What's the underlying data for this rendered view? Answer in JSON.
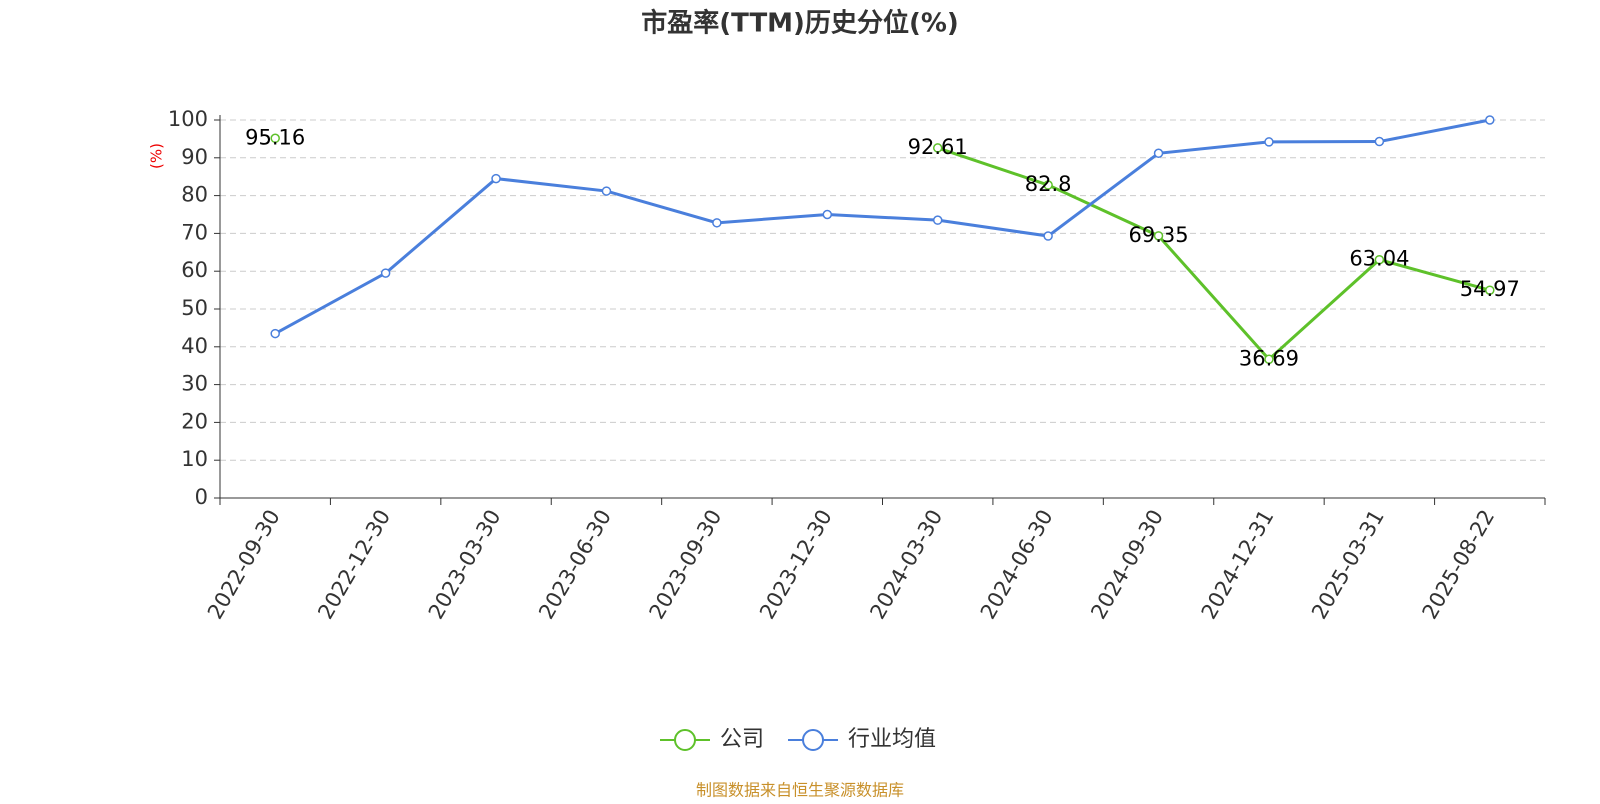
{
  "chart_data": {
    "type": "line",
    "title": "市盈率(TTM)历史分位(%)",
    "y_label": "(%)",
    "categories": [
      "2022-09-30",
      "2022-12-30",
      "2023-03-30",
      "2023-06-30",
      "2023-09-30",
      "2023-12-30",
      "2024-03-30",
      "2024-06-30",
      "2024-09-30",
      "2024-12-31",
      "2025-03-31",
      "2025-08-22"
    ],
    "series": [
      {
        "name": "公司",
        "color": "#5ec12a",
        "values": [
          95.16,
          null,
          null,
          null,
          null,
          null,
          92.61,
          82.8,
          69.35,
          36.69,
          63.04,
          54.97
        ]
      },
      {
        "name": "行业均值",
        "color": "#4a7fdc",
        "values": [
          43.5,
          59.5,
          84.5,
          81.2,
          72.8,
          75,
          73.5,
          69.3,
          91.2,
          94.2,
          94.3,
          100
        ]
      }
    ],
    "ylim": [
      0,
      100
    ],
    "yticks": [
      0,
      10,
      20,
      30,
      40,
      50,
      60,
      70,
      80,
      90,
      100
    ],
    "grid": true,
    "footer": "制图数据来自恒生聚源数据库"
  }
}
